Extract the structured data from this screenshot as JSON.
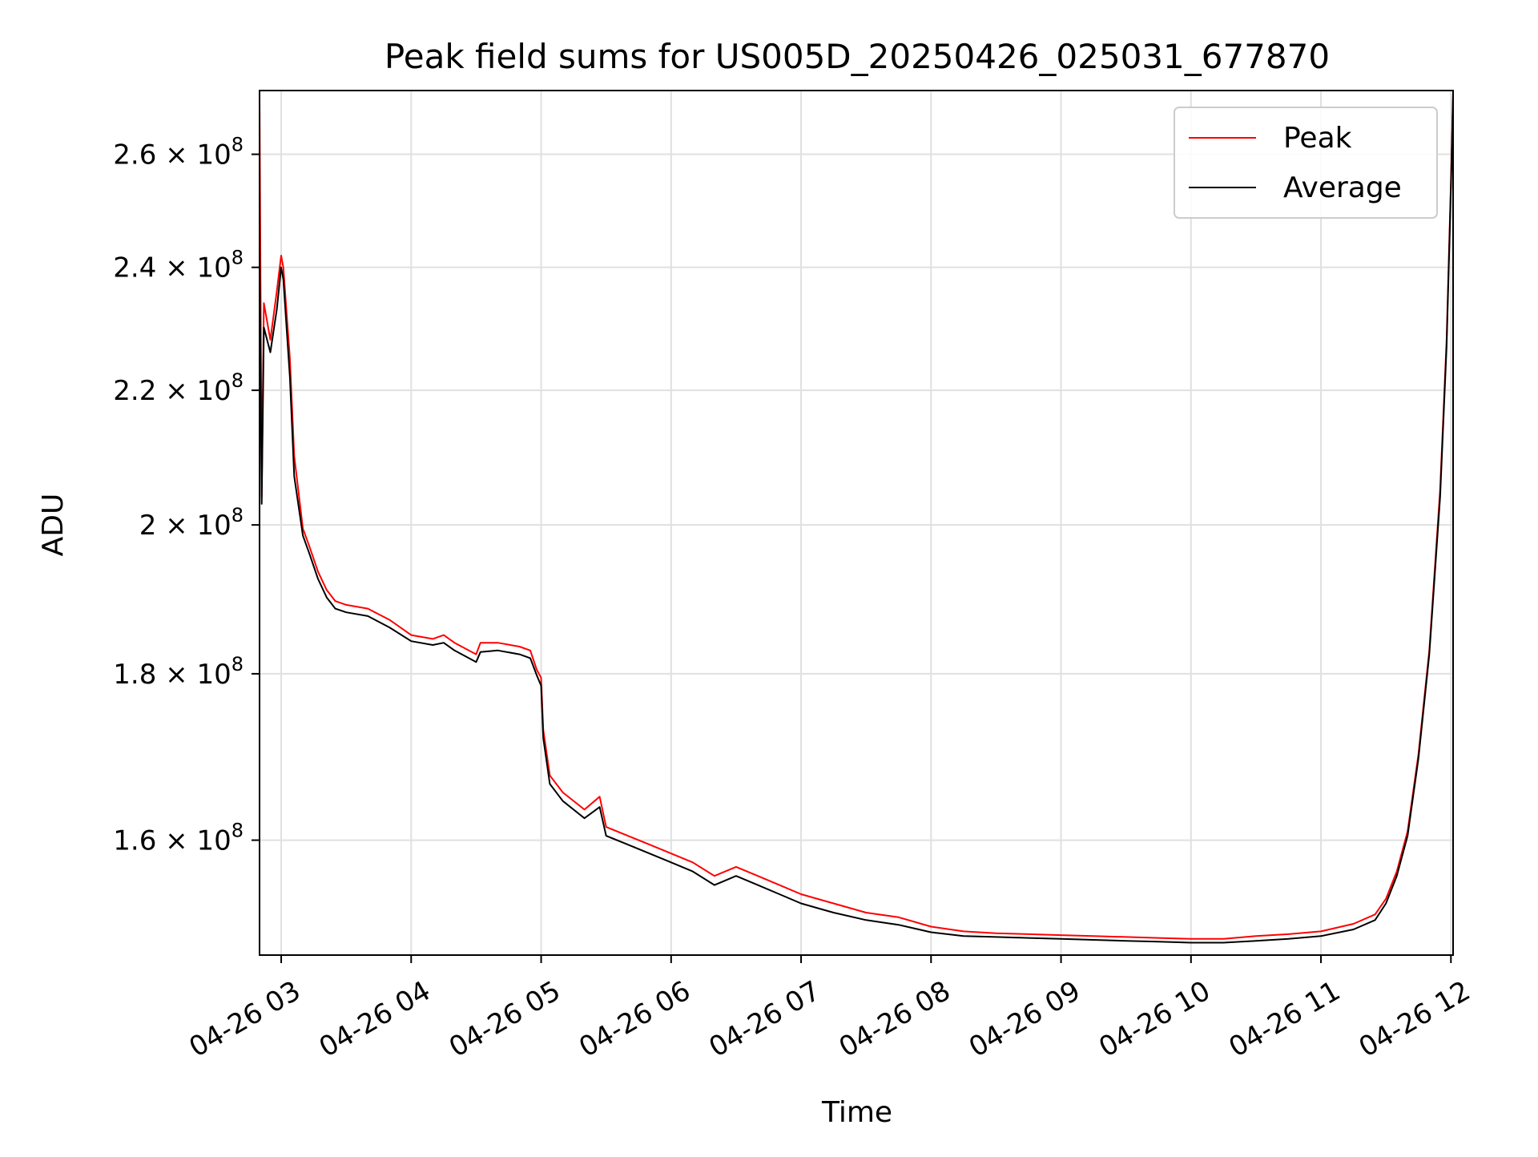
{
  "chart_data": {
    "type": "line",
    "title": "Peak field sums for US005D_20250426_025031_677870",
    "xlabel": "Time",
    "ylabel": "ADU",
    "y_scale": "log",
    "ylim": [
      147500000,
      272000000
    ],
    "xlim": [
      "2025-04-26 02:50",
      "2025-04-26 12:01"
    ],
    "grid": true,
    "legend_position": "top-right",
    "x_ticks": [
      {
        "t": "2025-04-26 03:00",
        "label": "04-26 03"
      },
      {
        "t": "2025-04-26 04:00",
        "label": "04-26 04"
      },
      {
        "t": "2025-04-26 05:00",
        "label": "04-26 05"
      },
      {
        "t": "2025-04-26 06:00",
        "label": "04-26 06"
      },
      {
        "t": "2025-04-26 07:00",
        "label": "04-26 07"
      },
      {
        "t": "2025-04-26 08:00",
        "label": "04-26 08"
      },
      {
        "t": "2025-04-26 09:00",
        "label": "04-26 09"
      },
      {
        "t": "2025-04-26 10:00",
        "label": "04-26 10"
      },
      {
        "t": "2025-04-26 11:00",
        "label": "04-26 11"
      },
      {
        "t": "2025-04-26 12:00",
        "label": "04-26 12"
      }
    ],
    "y_ticks": [
      {
        "v": 160000000,
        "mant": "1.6",
        "exp": "8"
      },
      {
        "v": 180000000,
        "mant": "1.8",
        "exp": "8"
      },
      {
        "v": 200000000,
        "mant": "2",
        "exp": "8"
      },
      {
        "v": 220000000,
        "mant": "2.2",
        "exp": "8"
      },
      {
        "v": 240000000,
        "mant": "2.4",
        "exp": "8"
      },
      {
        "v": 260000000,
        "mant": "2.6",
        "exp": "8"
      }
    ],
    "times_label": "2025-04-26",
    "x": [
      "02:50",
      "02:51",
      "02:52",
      "02:55",
      "02:58",
      "03:00",
      "03:01",
      "03:04",
      "03:06",
      "03:10",
      "03:13",
      "03:17",
      "03:21",
      "03:25",
      "03:30",
      "03:40",
      "03:50",
      "04:00",
      "04:10",
      "04:15",
      "04:20",
      "04:30",
      "04:32",
      "04:40",
      "04:50",
      "04:55",
      "04:58",
      "05:00",
      "05:01",
      "05:04",
      "05:10",
      "05:20",
      "05:27",
      "05:30",
      "05:40",
      "05:50",
      "06:00",
      "06:10",
      "06:20",
      "06:25",
      "06:30",
      "06:40",
      "06:50",
      "07:00",
      "07:15",
      "07:30",
      "07:45",
      "08:00",
      "08:15",
      "08:30",
      "08:45",
      "09:00",
      "09:15",
      "09:30",
      "09:45",
      "10:00",
      "10:15",
      "10:30",
      "10:45",
      "11:00",
      "11:15",
      "11:25",
      "11:30",
      "11:35",
      "11:40",
      "11:45",
      "11:50",
      "11:55",
      "11:58",
      "12:00",
      "12:01"
    ],
    "series": [
      {
        "name": "Peak",
        "color": "#ff0000",
        "values": [
          271000000,
          204000000,
          234000000,
          228000000,
          236000000,
          242000000,
          240000000,
          225000000,
          210000000,
          199500000,
          197000000,
          193500000,
          191000000,
          189500000,
          189000000,
          188500000,
          187000000,
          185000000,
          184500000,
          185000000,
          184000000,
          182500000,
          184000000,
          184000000,
          183500000,
          183000000,
          180500000,
          179500000,
          173000000,
          167500000,
          165500000,
          163500000,
          165000000,
          161500000,
          160500000,
          159500000,
          158500000,
          157500000,
          156000000,
          156500000,
          157000000,
          156000000,
          155000000,
          154000000,
          153000000,
          152000000,
          151500000,
          150500000,
          150000000,
          149800000,
          149700000,
          149600000,
          149500000,
          149400000,
          149300000,
          149200000,
          149200000,
          149500000,
          149700000,
          150000000,
          150800000,
          151800000,
          153500000,
          156500000,
          161000000,
          170000000,
          183000000,
          205000000,
          228000000,
          255000000,
          272000000
        ]
      },
      {
        "name": "Average",
        "color": "#000000",
        "values": [
          244000000,
          203000000,
          230000000,
          226000000,
          233000000,
          240000000,
          238000000,
          222000000,
          207000000,
          198500000,
          196000000,
          192500000,
          190000000,
          188500000,
          188000000,
          187500000,
          186000000,
          184200000,
          183700000,
          184000000,
          183000000,
          181500000,
          182800000,
          183000000,
          182500000,
          182000000,
          179800000,
          178500000,
          172000000,
          166500000,
          164500000,
          162500000,
          163800000,
          160500000,
          159500000,
          158500000,
          157500000,
          156500000,
          155000000,
          155500000,
          156000000,
          155000000,
          154000000,
          153000000,
          152000000,
          151200000,
          150700000,
          149900000,
          149500000,
          149400000,
          149300000,
          149200000,
          149100000,
          149000000,
          148900000,
          148800000,
          148800000,
          149000000,
          149200000,
          149500000,
          150200000,
          151200000,
          153000000,
          156000000,
          160500000,
          169500000,
          182500000,
          204000000,
          227000000,
          254000000,
          271000000
        ]
      }
    ]
  }
}
